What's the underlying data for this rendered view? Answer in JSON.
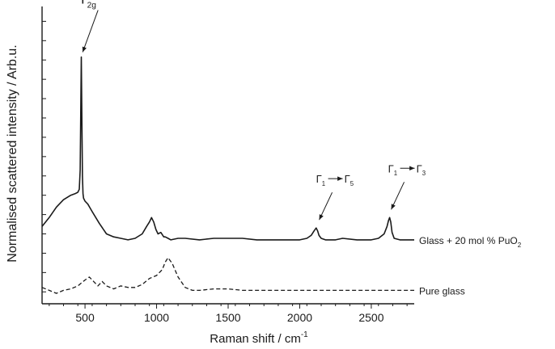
{
  "chart_data": {
    "type": "line",
    "xlabel": "Raman shift / cm",
    "xlabel_sup": "-1",
    "ylabel": "Normalised scattered intensity / Arb.u.",
    "xlim": [
      200,
      2800
    ],
    "ylim": [
      0,
      10
    ],
    "x_ticks": [
      500,
      1000,
      1500,
      2000,
      2500
    ],
    "x_tick_labels": [
      "500",
      "1000",
      "1500",
      "2000",
      "2500"
    ],
    "y_tick_values": [
      0.4,
      1.05,
      1.7,
      2.35,
      3.0,
      3.65,
      4.3,
      4.95,
      5.6,
      6.25,
      6.9,
      7.55,
      8.2,
      8.85,
      9.5
    ],
    "y_tick_labels": false,
    "grid": false,
    "series": [
      {
        "name": "Glass + 20 mol % PuO",
        "name_sub": "2",
        "style": "solid",
        "color": "#1a1a1a",
        "x": [
          200,
          250,
          300,
          350,
          400,
          430,
          450,
          460,
          466,
          470,
          474,
          478,
          482,
          486,
          490,
          500,
          520,
          550,
          600,
          650,
          700,
          750,
          800,
          850,
          900,
          930,
          950,
          965,
          980,
          995,
          1010,
          1030,
          1050,
          1060,
          1080,
          1100,
          1150,
          1200,
          1300,
          1400,
          1500,
          1600,
          1700,
          1800,
          1900,
          2000,
          2050,
          2080,
          2100,
          2115,
          2125,
          2135,
          2150,
          2180,
          2250,
          2300,
          2400,
          2500,
          2550,
          2590,
          2610,
          2620,
          2628,
          2636,
          2645,
          2660,
          2700,
          2750,
          2800
        ],
        "y": [
          2.6,
          2.9,
          3.25,
          3.5,
          3.65,
          3.7,
          3.75,
          3.85,
          4.5,
          6.4,
          8.3,
          6.2,
          4.3,
          3.7,
          3.55,
          3.45,
          3.35,
          3.1,
          2.7,
          2.35,
          2.25,
          2.2,
          2.15,
          2.2,
          2.35,
          2.6,
          2.75,
          2.9,
          2.75,
          2.5,
          2.35,
          2.4,
          2.25,
          2.25,
          2.2,
          2.15,
          2.2,
          2.2,
          2.15,
          2.2,
          2.2,
          2.2,
          2.15,
          2.15,
          2.15,
          2.15,
          2.2,
          2.3,
          2.45,
          2.55,
          2.45,
          2.3,
          2.2,
          2.15,
          2.15,
          2.2,
          2.15,
          2.15,
          2.2,
          2.35,
          2.6,
          2.8,
          2.9,
          2.75,
          2.4,
          2.2,
          2.15,
          2.15,
          2.15
        ]
      },
      {
        "name": "Pure glass",
        "style": "dashed",
        "color": "#1a1a1a",
        "x": [
          200,
          250,
          300,
          350,
          400,
          450,
          500,
          530,
          560,
          590,
          620,
          650,
          700,
          750,
          800,
          850,
          900,
          950,
          1000,
          1040,
          1060,
          1080,
          1110,
          1150,
          1200,
          1250,
          1300,
          1400,
          1450,
          1500,
          1600,
          1800,
          2000,
          2200,
          2400,
          2600,
          2800
        ],
        "y": [
          0.55,
          0.45,
          0.35,
          0.45,
          0.5,
          0.6,
          0.8,
          0.9,
          0.75,
          0.6,
          0.75,
          0.6,
          0.5,
          0.6,
          0.55,
          0.55,
          0.65,
          0.85,
          0.95,
          1.15,
          1.4,
          1.55,
          1.35,
          0.9,
          0.55,
          0.45,
          0.45,
          0.5,
          0.5,
          0.5,
          0.45,
          0.45,
          0.45,
          0.45,
          0.45,
          0.45,
          0.45
        ]
      }
    ],
    "annotations": [
      {
        "main": "T",
        "sub": "2g",
        "target_x": 478,
        "target_y": 8.3,
        "mode": "arrow"
      },
      {
        "main": "Γ",
        "sub": "1",
        "to": "Γ",
        "to_sub": "5",
        "target_x": 2125,
        "target_y": 2.55,
        "mode": "transition"
      },
      {
        "main": "Γ",
        "sub": "1",
        "to": "Γ",
        "to_sub": "3",
        "target_x": 2628,
        "target_y": 2.9,
        "mode": "transition"
      }
    ]
  }
}
